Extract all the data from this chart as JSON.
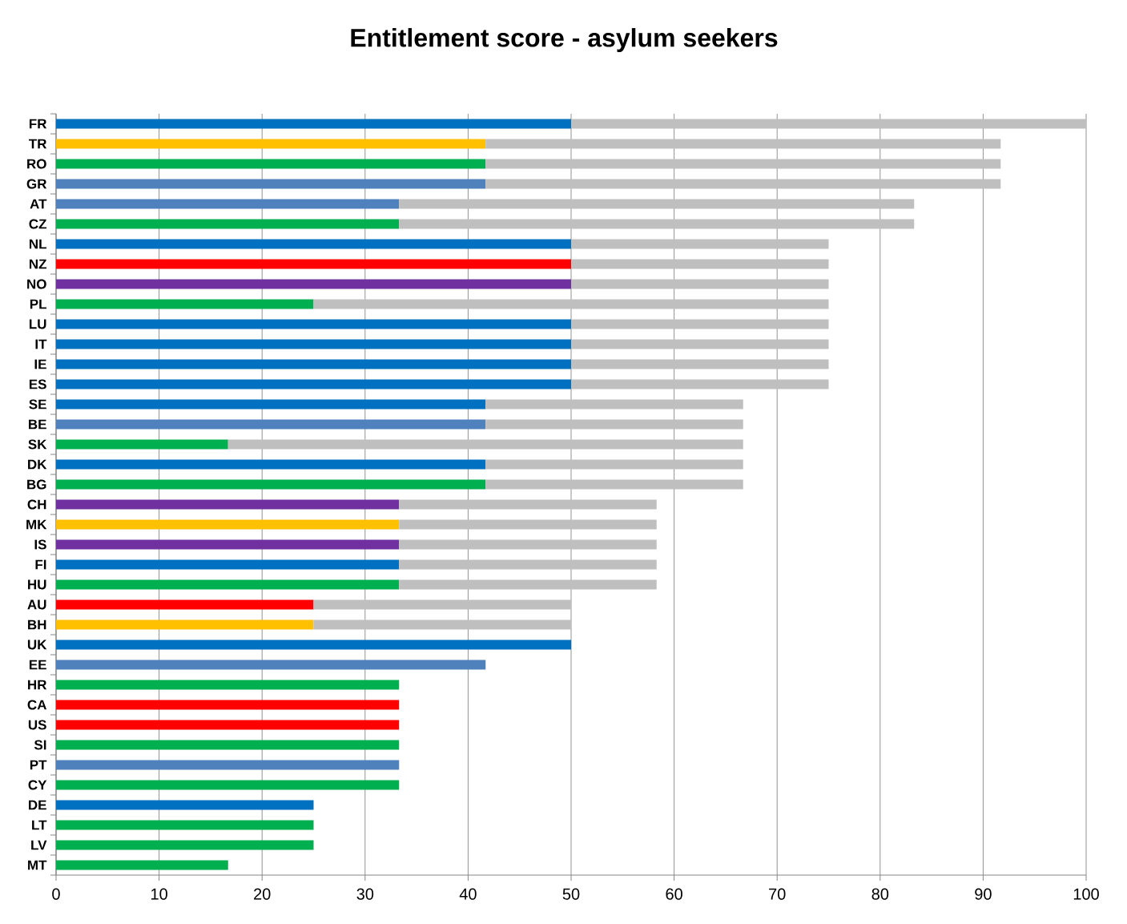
{
  "chart_data": {
    "type": "bar",
    "title": "Entitlement score - asylum seekers",
    "orientation": "horizontal",
    "stacked": true,
    "categories": [
      "FR",
      "TR",
      "RO",
      "GR",
      "AT",
      "CZ",
      "NL",
      "NZ",
      "NO",
      "PL",
      "LU",
      "IT",
      "IE",
      "ES",
      "SE",
      "BE",
      "SK",
      "DK",
      "BG",
      "CH",
      "MK",
      "IS",
      "FI",
      "HU",
      "AU",
      "BH",
      "UK",
      "EE",
      "HR",
      "CA",
      "US",
      "SI",
      "PT",
      "CY",
      "DE",
      "LT",
      "LV",
      "MT"
    ],
    "series": [
      {
        "colors": [
          "#0070c0",
          "#ffc000",
          "#00b050",
          "#4f81bd",
          "#4f81bd",
          "#00b050",
          "#0070c0",
          "#ff0000",
          "#7030a0",
          "#00b050",
          "#0070c0",
          "#0070c0",
          "#0070c0",
          "#0070c0",
          "#0070c0",
          "#4f81bd",
          "#00b050",
          "#0070c0",
          "#00b050",
          "#7030a0",
          "#ffc000",
          "#7030a0",
          "#0070c0",
          "#00b050",
          "#ff0000",
          "#ffc000",
          "#0070c0",
          "#4f81bd",
          "#00b050",
          "#ff0000",
          "#ff0000",
          "#00b050",
          "#4f81bd",
          "#00b050",
          "#0070c0",
          "#00b050",
          "#00b050",
          "#00b050"
        ],
        "values": [
          50,
          41.7,
          41.7,
          41.7,
          33.3,
          33.3,
          50,
          50,
          50,
          25,
          50,
          50,
          50,
          50,
          41.7,
          41.7,
          16.7,
          41.7,
          41.7,
          33.3,
          33.3,
          33.3,
          33.3,
          33.3,
          25,
          25,
          50,
          41.7,
          33.3,
          33.3,
          33.3,
          33.3,
          33.3,
          33.3,
          25,
          25,
          25,
          16.7
        ]
      },
      {
        "color": "#bfbfbf",
        "values": [
          50,
          50,
          50,
          50,
          50,
          50,
          25,
          25,
          25,
          50,
          25,
          25,
          25,
          25,
          25,
          25,
          50,
          25,
          25,
          25,
          25,
          25,
          25,
          25,
          25,
          25,
          null,
          null,
          null,
          null,
          null,
          null,
          null,
          null,
          null,
          null,
          null,
          null
        ]
      }
    ],
    "xlim": [
      0,
      100
    ],
    "xticks": [
      0,
      10,
      20,
      30,
      40,
      50,
      60,
      70,
      80,
      90,
      100
    ],
    "grid": "x"
  }
}
